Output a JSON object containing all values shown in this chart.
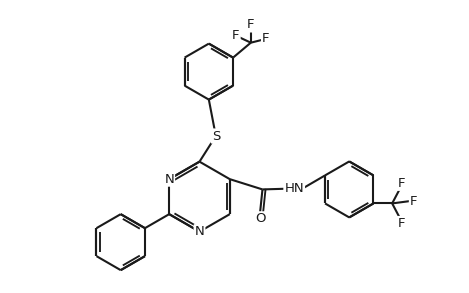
{
  "bg_color": "#ffffff",
  "line_color": "#1a1a1a",
  "line_width": 1.5,
  "font_size": 9.5,
  "figsize": [
    4.69,
    2.93
  ],
  "dpi": 100,
  "xlim": [
    0,
    10
  ],
  "ylim": [
    0,
    6.25
  ]
}
